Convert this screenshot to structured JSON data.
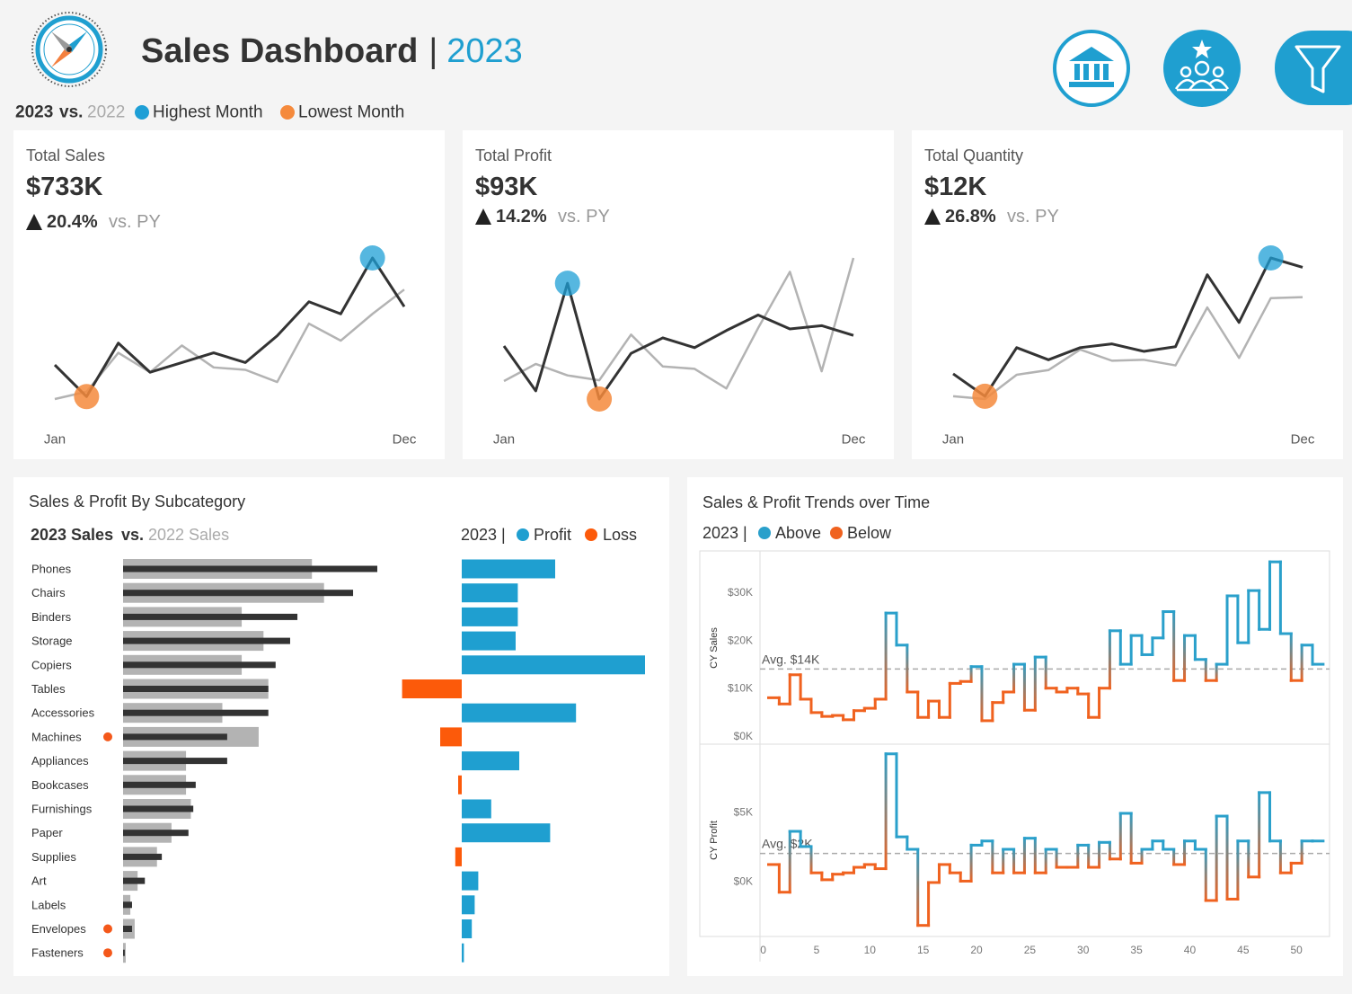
{
  "header": {
    "title": "Sales Dashboard",
    "separator": "|",
    "year": "2023"
  },
  "legend": {
    "joiner": "vs.",
    "max_label": "Highest Month",
    "min_label": "Lowest Month",
    "max_color": "#1e9fd6",
    "min_color": "#f58a3c"
  },
  "chart_data": [
    {
      "type": "line",
      "title": "Total Sales",
      "value_text": "$733K",
      "change": "20.4%",
      "change_suffix": "vs. PY",
      "categories": [
        "Jan",
        null,
        null,
        null,
        null,
        null,
        null,
        null,
        null,
        null,
        null,
        "Dec"
      ],
      "series": [
        {
          "name": "2023",
          "color": "#333333",
          "values": [
            37,
            24,
            46,
            34,
            38,
            42,
            38,
            49,
            63,
            58,
            81,
            61
          ]
        },
        {
          "name": "2022",
          "color": "#b3b3b3",
          "values": [
            23,
            26,
            42,
            34,
            45,
            36,
            35,
            30,
            54,
            47,
            58,
            68
          ]
        }
      ]
    },
    {
      "type": "line",
      "title": "Total Profit",
      "value_text": "$93K",
      "change": "14.2%",
      "change_suffix": "vs. PY",
      "categories": [
        "Jan",
        null,
        null,
        null,
        null,
        null,
        null,
        null,
        null,
        null,
        null,
        "Dec"
      ],
      "series": [
        {
          "name": "2023",
          "color": "#333333",
          "values": [
            8.5,
            3.0,
            16.2,
            2.0,
            7.6,
            9.5,
            8.3,
            10.4,
            12.3,
            10.6,
            11.0,
            9.8
          ]
        },
        {
          "name": "2022",
          "color": "#b3b3b3",
          "values": [
            4.2,
            6.3,
            4.9,
            4.3,
            9.9,
            6.0,
            5.7,
            3.3,
            10.7,
            17.6,
            5.4,
            19.3
          ]
        }
      ]
    },
    {
      "type": "line",
      "title": "Total Quantity",
      "value_text": "$12K",
      "change": "26.8%",
      "change_suffix": "vs. PY",
      "categories": [
        "Jan",
        null,
        null,
        null,
        null,
        null,
        null,
        null,
        null,
        null,
        null,
        "Dec"
      ],
      "series": [
        {
          "name": "2023",
          "color": "#333333",
          "values": [
            1490,
            1250,
            1770,
            1640,
            1770,
            1810,
            1730,
            1780,
            2550,
            2040,
            2730,
            2630
          ]
        },
        {
          "name": "2022",
          "color": "#b3b3b3",
          "values": [
            1250,
            1220,
            1480,
            1530,
            1750,
            1630,
            1640,
            1580,
            2200,
            1660,
            2300,
            2310
          ]
        }
      ]
    },
    {
      "type": "hbar",
      "title": "Sales & Profit By Subcategory",
      "legend_joiner": "vs.",
      "decline_color": "#f4581a",
      "categories": [
        "Phones",
        "Chairs",
        "Binders",
        "Storage",
        "Copiers",
        "Tables",
        "Accessories",
        "Machines",
        "Appliances",
        "Bookcases",
        "Furnishings",
        "Paper",
        "Supplies",
        "Art",
        "Labels",
        "Envelopes",
        "Fasteners"
      ],
      "series": [
        {
          "name": "2023 Sales",
          "color": "#333333",
          "values": [
            105,
            95,
            72,
            69,
            63,
            60,
            60,
            43,
            43,
            30,
            29,
            27,
            16,
            9,
            3.7,
            3.7,
            0.7
          ]
        },
        {
          "name": "2022 Sales",
          "color": "#b3b3b3",
          "values": [
            78,
            83,
            49,
            58,
            49,
            60,
            41,
            56,
            26,
            26,
            28,
            20,
            14,
            6,
            3,
            4.8,
            1.1
          ]
        }
      ]
    },
    {
      "type": "divbar",
      "legend_title": "2023 |",
      "positive_label": "Profit",
      "negative_label": "Loss",
      "positive_color": "#1f9fd0",
      "negative_color": "#fc5a0a",
      "values": [
        13,
        7.8,
        7.8,
        7.5,
        25.5,
        -8.3,
        15.9,
        -3,
        8,
        -0.5,
        4.1,
        12.3,
        -0.9,
        2.3,
        1.8,
        1.4,
        0.3
      ]
    },
    {
      "type": "step",
      "title": "Sales & Profit Trends over Time",
      "legend_title": "2023 |",
      "above_label": "Above",
      "below_label": "Below",
      "above_color": "#2aa0cb",
      "below_color": "#f0621f",
      "y_label": "CY Sales",
      "avg": {
        "value": 14,
        "label": "Avg. $14K"
      },
      "ylim": [
        -1.7,
        38.5
      ],
      "yticks": [
        {
          "value": 0,
          "label": "$0K"
        },
        {
          "value": 10,
          "label": "$10K"
        },
        {
          "value": 20,
          "label": "$20K"
        },
        {
          "value": 30,
          "label": "$30K"
        }
      ],
      "xlim": [
        -0.3,
        53.1
      ],
      "x": [
        1,
        2,
        3,
        4,
        5,
        6,
        7,
        8,
        9,
        10,
        11,
        12,
        13,
        14,
        15,
        16,
        17,
        18,
        19,
        20,
        21,
        22,
        23,
        24,
        25,
        26,
        27,
        28,
        29,
        30,
        31,
        32,
        33,
        34,
        35,
        36,
        37,
        38,
        39,
        40,
        41,
        42,
        43,
        44,
        45,
        46,
        47,
        48,
        49,
        50,
        51,
        52
      ],
      "values": [
        8,
        6.7,
        12.8,
        7.7,
        4.9,
        4.1,
        4.3,
        3.4,
        5.3,
        5.8,
        7.7,
        25.7,
        19,
        9.2,
        3.9,
        7.3,
        3.9,
        11,
        11.4,
        14.5,
        3.2,
        7,
        9.2,
        15,
        5.4,
        16.5,
        10,
        9.2,
        10,
        8.8,
        3.9,
        10,
        22,
        15,
        21,
        17,
        20.5,
        26,
        11.6,
        21,
        16,
        11.6,
        15,
        29.3,
        19.5,
        30.4,
        22.3,
        36.4,
        21.4,
        11.6,
        19,
        15
      ]
    },
    {
      "type": "step",
      "y_label": "CY Profit",
      "avg": {
        "value": 2,
        "label": "Avg. $2K"
      },
      "ylim": [
        -4,
        9.9
      ],
      "yticks": [
        {
          "value": 0,
          "label": "$0K"
        },
        {
          "value": 5,
          "label": "$5K"
        }
      ],
      "xlim": [
        -0.3,
        53.1
      ],
      "xticks": [
        0,
        5,
        10,
        15,
        20,
        25,
        30,
        35,
        40,
        45,
        50
      ],
      "x": [
        1,
        2,
        3,
        4,
        5,
        6,
        7,
        8,
        9,
        10,
        11,
        12,
        13,
        14,
        15,
        16,
        17,
        18,
        19,
        20,
        21,
        22,
        23,
        24,
        25,
        26,
        27,
        28,
        29,
        30,
        31,
        32,
        33,
        34,
        35,
        36,
        37,
        38,
        39,
        40,
        41,
        42,
        43,
        44,
        45,
        46,
        47,
        48,
        49,
        50,
        51,
        52
      ],
      "values": [
        1.2,
        -0.8,
        3.6,
        2.5,
        0.6,
        0.1,
        0.5,
        0.6,
        1,
        1.2,
        0.9,
        9.2,
        3.2,
        2.3,
        -3.2,
        -0.1,
        1.2,
        0.6,
        0,
        2.6,
        2.9,
        0.6,
        2.3,
        0.6,
        3.1,
        0.6,
        2.3,
        1,
        1,
        2.6,
        1,
        2.8,
        1.6,
        4.9,
        1.3,
        2.3,
        2.9,
        2.3,
        1.2,
        2.9,
        2.3,
        -1.4,
        4.7,
        -1.3,
        2.9,
        0.3,
        6.4,
        2.9,
        0.6,
        1.3,
        2.9,
        2.9
      ]
    }
  ]
}
